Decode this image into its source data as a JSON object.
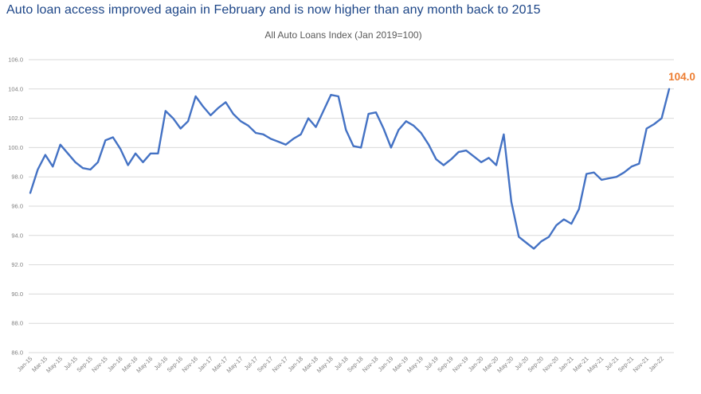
{
  "headline": {
    "text": "Auto loan access improved again in February and is now higher than any month back to 2015",
    "color": "#1C4587"
  },
  "chart_data": {
    "type": "line",
    "title": "All Auto Loans Index (Jan 2019=100)",
    "legend": "none",
    "grid": "horizontal",
    "ylim": [
      86,
      106
    ],
    "y_tick_step": 2,
    "y_tick_format": "one_decimal",
    "x_tick_every": 2,
    "x_tick_rotation_deg": 45,
    "colors": {
      "series": "#4472C4",
      "gridline": "#D9D9D9",
      "axis_labels": "#808080",
      "subtitle": "#595959"
    },
    "end_label": {
      "text": "104.0",
      "color": "#ED7D31"
    },
    "categories": [
      "Jan-15",
      "Feb-15",
      "Mar-15",
      "Apr-15",
      "May-15",
      "Jun-15",
      "Jul-15",
      "Aug-15",
      "Sep-15",
      "Oct-15",
      "Nov-15",
      "Dec-15",
      "Jan-16",
      "Feb-16",
      "Mar-16",
      "Apr-16",
      "May-16",
      "Jun-16",
      "Jul-16",
      "Aug-16",
      "Sep-16",
      "Oct-16",
      "Nov-16",
      "Dec-16",
      "Jan-17",
      "Feb-17",
      "Mar-17",
      "Apr-17",
      "May-17",
      "Jun-17",
      "Jul-17",
      "Aug-17",
      "Sep-17",
      "Oct-17",
      "Nov-17",
      "Dec-17",
      "Jan-18",
      "Feb-18",
      "Mar-18",
      "Apr-18",
      "May-18",
      "Jun-18",
      "Jul-18",
      "Aug-18",
      "Sep-18",
      "Oct-18",
      "Nov-18",
      "Dec-18",
      "Jan-19",
      "Feb-19",
      "Mar-19",
      "Apr-19",
      "May-19",
      "Jun-19",
      "Jul-19",
      "Aug-19",
      "Sep-19",
      "Oct-19",
      "Nov-19",
      "Dec-19",
      "Jan-20",
      "Feb-20",
      "Mar-20",
      "Apr-20",
      "May-20",
      "Jun-20",
      "Jul-20",
      "Aug-20",
      "Sep-20",
      "Oct-20",
      "Nov-20",
      "Dec-20",
      "Jan-21",
      "Feb-21",
      "Mar-21",
      "Apr-21",
      "May-21",
      "Jun-21",
      "Jul-21",
      "Aug-21",
      "Sep-21",
      "Oct-21",
      "Nov-21",
      "Dec-21",
      "Jan-22",
      "Feb-22"
    ],
    "series": [
      {
        "name": "All Auto Loans Index",
        "values": [
          96.9,
          98.5,
          99.5,
          98.7,
          100.2,
          99.6,
          99.0,
          98.6,
          98.5,
          99.0,
          100.5,
          100.7,
          99.9,
          98.8,
          99.6,
          99.0,
          99.6,
          99.6,
          102.5,
          102.0,
          101.3,
          101.8,
          103.5,
          102.8,
          102.2,
          102.7,
          103.1,
          102.3,
          101.8,
          101.5,
          101.0,
          100.9,
          100.6,
          100.4,
          100.2,
          100.6,
          100.9,
          102.0,
          101.4,
          102.5,
          103.6,
          103.5,
          101.2,
          100.1,
          100.0,
          102.3,
          102.4,
          101.3,
          100.0,
          101.2,
          101.8,
          101.5,
          101.0,
          100.2,
          99.2,
          98.8,
          99.2,
          99.7,
          99.8,
          99.4,
          99.0,
          99.3,
          98.8,
          100.9,
          96.3,
          93.9,
          93.5,
          93.1,
          93.6,
          93.9,
          94.7,
          95.1,
          94.8,
          95.8,
          98.2,
          98.3,
          97.8,
          97.9,
          98.0,
          98.3,
          98.7,
          98.9,
          101.3,
          101.6,
          102.0,
          104.0
        ]
      }
    ]
  }
}
